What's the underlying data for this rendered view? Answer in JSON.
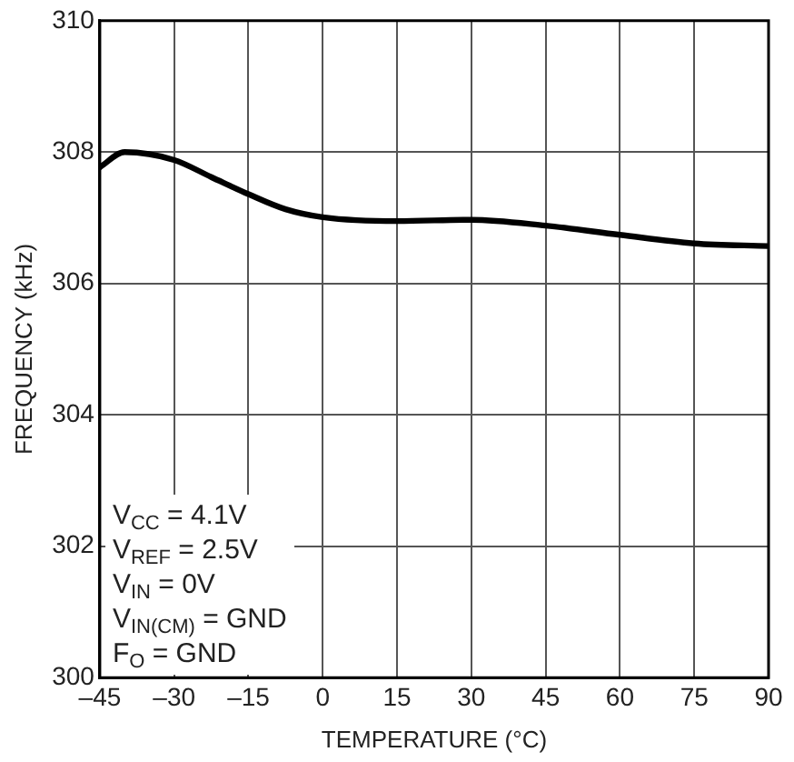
{
  "chart_data": {
    "type": "line",
    "xlabel": "TEMPERATURE (°C)",
    "ylabel": "FREQUENCY (kHz)",
    "x": [
      -45,
      -40,
      -30,
      -22.5,
      -15,
      -7.5,
      0,
      15,
      30,
      45,
      60,
      75,
      90
    ],
    "series": [
      {
        "color": "#000000",
        "values": [
          307.77,
          308.0,
          307.88,
          307.62,
          307.36,
          307.13,
          307.01,
          306.95,
          306.97,
          306.88,
          306.74,
          306.61,
          306.57
        ]
      }
    ],
    "xlim": [
      -45,
      90
    ],
    "xticks": [
      {
        "value": -45,
        "label": "–45"
      },
      {
        "value": -30,
        "label": "–30"
      },
      {
        "value": -15,
        "label": "–15"
      },
      0,
      15,
      30,
      45,
      60,
      75,
      90
    ],
    "ylim": [
      300,
      310
    ],
    "yticks": [
      300,
      302,
      304,
      306,
      308,
      310
    ],
    "grid": true,
    "legend": false,
    "marker": "none",
    "line_style": "solid",
    "annotations": [
      "V$_{CC}$ = 4.1V",
      "V$_{REF}$ = 2.5V",
      "V$_{IN}$ = 0V",
      "V$_{IN(CM)}$ = GND",
      "F$_{O}$ = GND"
    ]
  }
}
